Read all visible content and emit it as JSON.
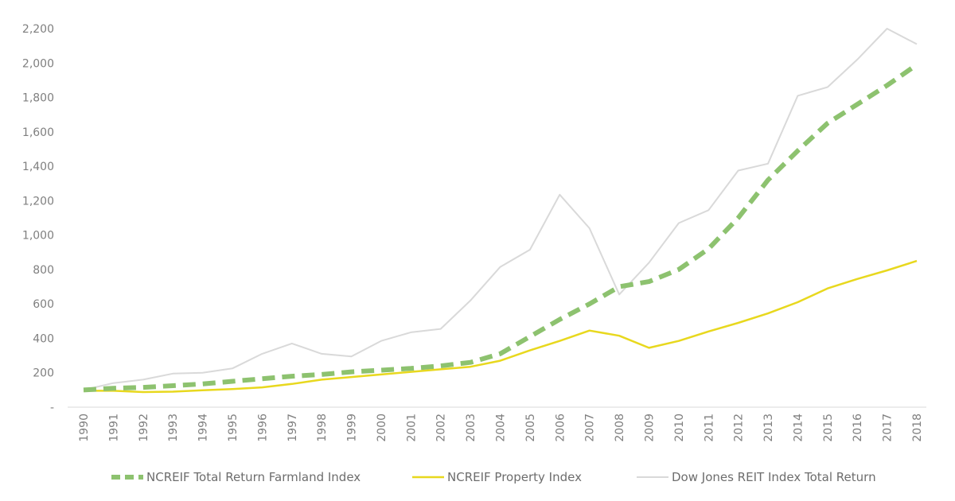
{
  "chart_data": {
    "type": "line",
    "title": "",
    "xlabel": "",
    "ylabel": "",
    "x": [
      "1990",
      "1991",
      "1992",
      "1993",
      "1994",
      "1995",
      "1996",
      "1997",
      "1998",
      "1999",
      "2000",
      "2001",
      "2002",
      "2003",
      "2004",
      "2005",
      "2006",
      "2007",
      "2008",
      "2009",
      "2010",
      "2011",
      "2012",
      "2013",
      "2014",
      "2015",
      "2016",
      "2017",
      "2018"
    ],
    "ylim": [
      0,
      2200
    ],
    "y_ticks": [
      {
        "value": 0,
        "label": "-"
      },
      {
        "value": 200,
        "label": "200"
      },
      {
        "value": 400,
        "label": "400"
      },
      {
        "value": 600,
        "label": "600"
      },
      {
        "value": 800,
        "label": "800"
      },
      {
        "value": 1000,
        "label": "1,000"
      },
      {
        "value": 1200,
        "label": "1,200"
      },
      {
        "value": 1400,
        "label": "1,400"
      },
      {
        "value": 1600,
        "label": "1,600"
      },
      {
        "value": 1800,
        "label": "1,800"
      },
      {
        "value": 2000,
        "label": "2,000"
      },
      {
        "value": 2200,
        "label": "2,200"
      }
    ],
    "grid": false,
    "legend_position": "bottom",
    "series": [
      {
        "name": "NCREIF Total Return Farmland Index",
        "color": "#8dc26f",
        "style": "dashed",
        "values": [
          100,
          110,
          115,
          125,
          135,
          150,
          165,
          180,
          190,
          205,
          215,
          225,
          240,
          260,
          310,
          410,
          510,
          600,
          700,
          730,
          800,
          920,
          1100,
          1320,
          1490,
          1650,
          1760,
          1870,
          1990
        ]
      },
      {
        "name": "NCREIF Property Index",
        "color": "#e8d81e",
        "style": "solid",
        "values": [
          95,
          95,
          88,
          90,
          98,
          105,
          115,
          135,
          160,
          175,
          190,
          205,
          220,
          235,
          270,
          330,
          385,
          445,
          415,
          345,
          385,
          440,
          490,
          545,
          610,
          690,
          745,
          795,
          850
        ]
      },
      {
        "name": "Dow Jones REIT Index Total Return",
        "color": "#d9d9d9",
        "style": "solid",
        "values": [
          100,
          140,
          160,
          195,
          200,
          225,
          310,
          370,
          310,
          295,
          385,
          435,
          455,
          620,
          815,
          915,
          1235,
          1040,
          655,
          840,
          1070,
          1145,
          1375,
          1415,
          1810,
          1860,
          2020,
          2200,
          2110
        ]
      }
    ]
  }
}
